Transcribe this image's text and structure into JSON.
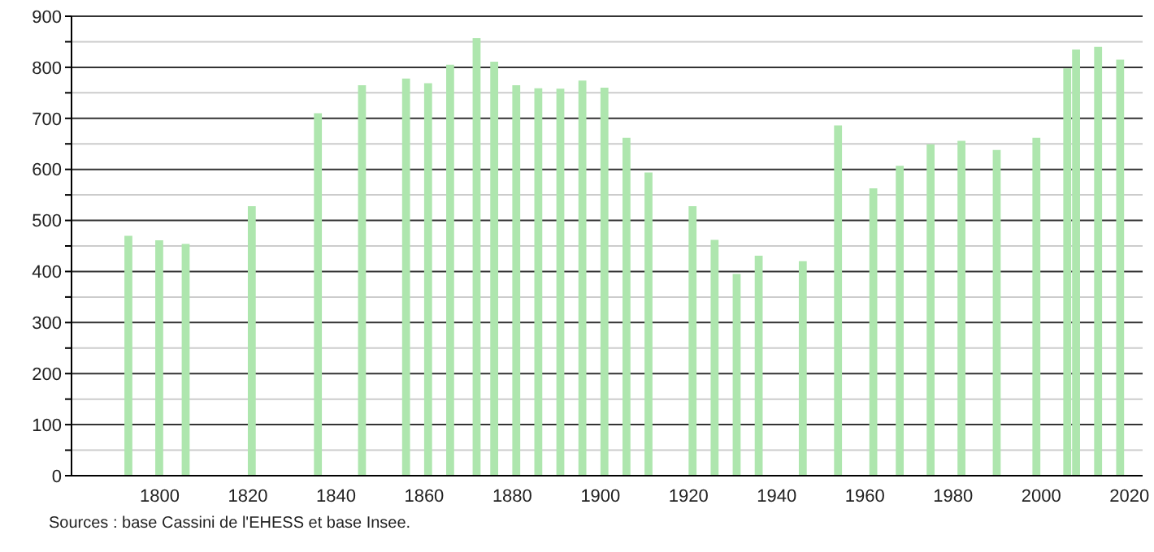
{
  "chart_data": {
    "type": "bar",
    "x": [
      1793,
      1800,
      1806,
      1821,
      1836,
      1846,
      1856,
      1861,
      1866,
      1872,
      1876,
      1881,
      1886,
      1891,
      1896,
      1901,
      1906,
      1911,
      1921,
      1926,
      1931,
      1936,
      1946,
      1954,
      1962,
      1968,
      1975,
      1982,
      1990,
      1999,
      2006,
      2008,
      2013,
      2018
    ],
    "values": [
      470,
      461,
      454,
      528,
      710,
      765,
      778,
      769,
      805,
      857,
      811,
      765,
      759,
      758,
      774,
      760,
      662,
      594,
      528,
      462,
      395,
      431,
      420,
      686,
      563,
      607,
      649,
      656,
      638,
      662,
      798,
      835,
      840,
      815
    ],
    "color": "#aee6ae",
    "xlim": [
      1780,
      2023
    ],
    "xticks": [
      1800,
      1820,
      1840,
      1860,
      1880,
      1900,
      1920,
      1940,
      1960,
      1980,
      2000,
      2020
    ],
    "ylim": [
      0,
      900
    ],
    "yticks": [
      0,
      {
        "value": 50,
        "label": null
      },
      100,
      {
        "value": 150,
        "label": null
      },
      200,
      {
        "value": 250,
        "label": null
      },
      300,
      {
        "value": 350,
        "label": null
      },
      400,
      {
        "value": 450,
        "label": null
      },
      500,
      {
        "value": 550,
        "label": null
      },
      600,
      {
        "value": 650,
        "label": null
      },
      700,
      {
        "value": 750,
        "label": null
      },
      800,
      {
        "value": 850,
        "label": null
      },
      900
    ],
    "grid": "y",
    "annotations": [
      "Sources : base Cassini de l'EHESS et base Insee."
    ]
  }
}
